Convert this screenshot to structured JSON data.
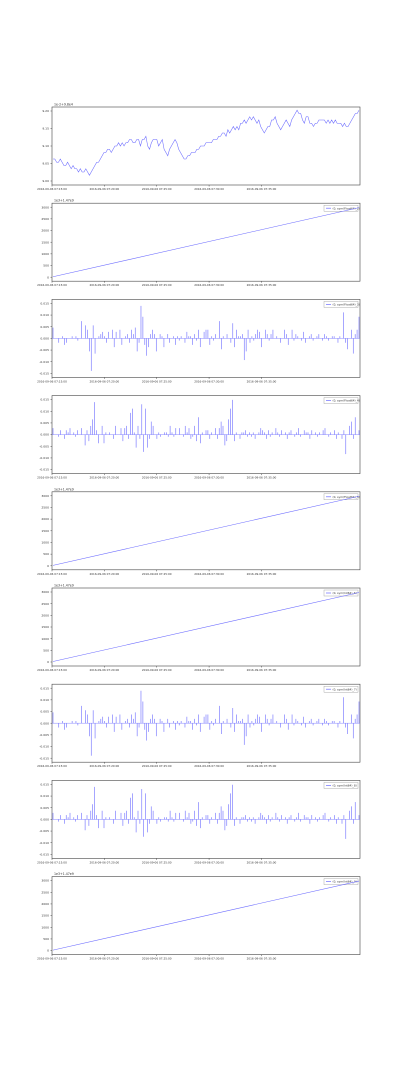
{
  "line_color": "#6b6bff",
  "frame_color": "#444444",
  "chart_data": [
    {
      "type": "line",
      "corner_label": "1e-2+9.8e4",
      "legend": "",
      "y_ticks": [
        "9.20",
        "9.15",
        "9.10",
        "9.05",
        "9.00"
      ],
      "x_ticks": [
        "2016-09-06 07:15:00",
        "2016-09-06 07:20:00",
        "2016-09-06 07:25:00",
        "2016-09-06 07:30:00",
        "2016-09-06 07:35:00"
      ],
      "ylim": [
        8.98,
        9.22
      ],
      "y": [
        9.06,
        9.06,
        9.05,
        9.05,
        9.06,
        9.05,
        9.04,
        9.04,
        9.05,
        9.04,
        9.03,
        9.04,
        9.03,
        9.03,
        9.02,
        9.03,
        9.02,
        9.02,
        9.03,
        9.02,
        9.01,
        9.02,
        9.03,
        9.04,
        9.05,
        9.05,
        9.06,
        9.07,
        9.08,
        9.08,
        9.09,
        9.09,
        9.08,
        9.09,
        9.1,
        9.1,
        9.11,
        9.1,
        9.11,
        9.1,
        9.11,
        9.11,
        9.12,
        9.12,
        9.11,
        9.11,
        9.12,
        9.12,
        9.1,
        9.12,
        9.12,
        9.13,
        9.1,
        9.09,
        9.11,
        9.12,
        9.12,
        9.12,
        9.1,
        9.11,
        9.12,
        9.09,
        9.08,
        9.07,
        9.09,
        9.1,
        9.11,
        9.12,
        9.11,
        9.09,
        9.08,
        9.07,
        9.06,
        9.06,
        9.07,
        9.07,
        9.08,
        9.08,
        9.08,
        9.09,
        9.09,
        9.1,
        9.1,
        9.1,
        9.11,
        9.11,
        9.11,
        9.11,
        9.12,
        9.12,
        9.12,
        9.13,
        9.13,
        9.14,
        9.14,
        9.13,
        9.15,
        9.14,
        9.15,
        9.16,
        9.15,
        9.16,
        9.15,
        9.17,
        9.17,
        9.18,
        9.17,
        9.18,
        9.19,
        9.18,
        9.19,
        9.18,
        9.17,
        9.18,
        9.16,
        9.15,
        9.14,
        9.15,
        9.16,
        9.16,
        9.18,
        9.18,
        9.19,
        9.17,
        9.16,
        9.15,
        9.16,
        9.17,
        9.18,
        9.17,
        9.16,
        9.18,
        9.19,
        9.2,
        9.21,
        9.2,
        9.2,
        9.18,
        9.17,
        9.19,
        9.19,
        9.17,
        9.17,
        9.16,
        9.17,
        9.17,
        9.18,
        9.18,
        9.18,
        9.18,
        9.17,
        9.18,
        9.17,
        9.18,
        9.17,
        9.18,
        9.17,
        9.17,
        9.17,
        9.16,
        9.17,
        9.16,
        9.16,
        9.17,
        9.18,
        9.19,
        9.2,
        9.2,
        9.21
      ]
    },
    {
      "type": "line",
      "corner_label": "1e3+1.47e9",
      "legend": "(0, sym(Float64)_2)",
      "y_ticks": [
        "3000",
        "2500",
        "2000",
        "1500",
        "1000",
        "500",
        "0"
      ],
      "x_ticks": [
        "2016-09-06 07:15:00",
        "2016-09-06 07:20:00",
        "2016-09-06 07:25:00",
        "2016-09-06 07:30:00",
        "2016-09-06 07:35:00"
      ],
      "ylim": [
        -200,
        3300
      ],
      "y": [
        0,
        3100
      ]
    },
    {
      "type": "bar",
      "corner_label": "",
      "legend": "(0, sym(Float64)_3)",
      "y_ticks": [
        "0.015",
        "0.010",
        "0.005",
        "0.000",
        "-0.005",
        "-0.010",
        "-0.015"
      ],
      "x_ticks": [
        "2016-09-06 07:15:00",
        "2016-09-06 07:20:00",
        "2016-09-06 07:25:00",
        "2016-09-06 07:30:00",
        "2016-09-06 07:35:00"
      ],
      "ylim": [
        -0.018,
        0.018
      ],
      "values": [
        0.005,
        0,
        0,
        -0.002,
        0,
        0.001,
        -0.003,
        -0.002,
        0,
        0,
        0.001,
        0,
        0.001,
        -0.001,
        0,
        0.008,
        0,
        0.006,
        0.004,
        -0.006,
        -0.015,
        0.006,
        -0.007,
        0,
        0.001,
        0.002,
        0.003,
        0.001,
        -0.002,
        0.003,
        0,
        0.004,
        -0.004,
        0.003,
        0,
        0.004,
        -0.003,
        0,
        0.001,
        0.002,
        -0.002,
        0.004,
        0.002,
        0.005,
        -0.006,
        -0.002,
        0.015,
        0.01,
        -0.003,
        -0.008,
        -0.004,
        0.002,
        0.004,
        0.002,
        -0.006,
        0,
        0.002,
        0.001,
        -0.004,
        0,
        0.002,
        -0.002,
        0,
        0.001,
        -0.003,
        0.001,
        -0.001,
        0.001,
        0,
        -0.002,
        0.003,
        0.001,
        0.001,
        -0.003,
        0.002,
        -0.001,
        0.004,
        -0.004,
        0,
        0.003,
        0.004,
        0.004,
        -0.003,
        0.001,
        -0.001,
        0.002,
        0,
        0.008,
        -0.005,
        0.001,
        0,
        0.002,
        0,
        -0.002,
        0.007,
        -0.004,
        0.004,
        0.001,
        0.001,
        0.002,
        -0.01,
        -0.006,
        0.004,
        -0.002,
        0.001,
        -0.001,
        0.002,
        0.004,
        0.003,
        -0.004,
        0,
        0.004,
        0.002,
        -0.001,
        0.002,
        0.004,
        0,
        0.001,
        0,
        -0.002,
        0,
        0.004,
        0.002,
        -0.003,
        0,
        0.004,
        -0.001,
        0.002,
        0.001,
        0,
        -0.001,
        0.003,
        -0.002,
        0,
        0.001,
        0.002,
        -0.001,
        0,
        0.001,
        0.002,
        0,
        -0.001,
        0.002,
        0.001,
        -0.001,
        0,
        0.001,
        0.001,
        0,
        -0.002,
        0.001,
        0,
        0.012,
        -0.002,
        -0.005,
        0,
        0.004,
        -0.007,
        0.002,
        0.004,
        0.01
      ]
    },
    {
      "type": "bar",
      "corner_label": "",
      "legend": "(0, sym(Float64)_4)",
      "y_ticks": [
        "0.015",
        "0.010",
        "0.005",
        "0.000",
        "-0.005",
        "-0.010",
        "-0.015"
      ],
      "x_ticks": [
        "2016-09-06 07:15:00",
        "2016-09-06 07:20:00",
        "2016-09-06 07:25:00",
        "2016-09-06 07:30:00",
        "2016-09-06 07:35:00"
      ],
      "ylim": [
        -0.018,
        0.018
      ],
      "values": [
        0.003,
        0,
        0,
        -0.001,
        0.002,
        0,
        -0.002,
        0.002,
        0.001,
        0.003,
        0,
        0.001,
        -0.001,
        0.002,
        0,
        0.003,
        0,
        -0.005,
        0.002,
        -0.003,
        0.004,
        0.007,
        0.015,
        0.002,
        -0.004,
        0,
        0.004,
        -0.004,
        0.001,
        0,
        0.001,
        0,
        -0.002,
        0.004,
        0,
        0,
        0.003,
        -0.003,
        0.003,
        0.004,
        -0.002,
        0.01,
        0.012,
        0.001,
        -0.006,
        0.004,
        -0.002,
        0.014,
        -0.008,
        0.012,
        -0.006,
        -0.002,
        0.006,
        0.004,
        0,
        -0.002,
        0.001,
        -0.001,
        0,
        0.001,
        0.001,
        -0.001,
        0.004,
        0.001,
        -0.001,
        0.003,
        0,
        0.003,
        0,
        -0.001,
        0.004,
        0.001,
        0.003,
        -0.002,
        -0.001,
        0.004,
        -0.003,
        0.008,
        -0.004,
        0.001,
        0,
        0.002,
        0.002,
        -0.002,
        0.001,
        0,
        0.003,
        -0.002,
        0.003,
        0.006,
        0.004,
        -0.005,
        -0.003,
        0.007,
        0.012,
        0.016,
        -0.003,
        0.001,
        0,
        -0.002,
        0.001,
        0.001,
        0.002,
        -0.001,
        0.001,
        -0.001,
        0.001,
        -0.002,
        0,
        0.001,
        0.003,
        0.002,
        0.001,
        -0.002,
        0.002,
        -0.001,
        0.001,
        0,
        0.003,
        0.001,
        -0.001,
        0.002,
        0,
        0.001,
        -0.002,
        0.001,
        0.002,
        0,
        -0.001,
        0.001,
        0.003,
        -0.001,
        0,
        0.002,
        0.001,
        0.001,
        -0.002,
        0.002,
        0,
        0.001,
        -0.001,
        0.001,
        0,
        0.002,
        0.003,
        0,
        -0.001,
        0.001,
        0,
        0.002,
        -0.002,
        0.001,
        0,
        -0.002,
        0.002,
        -0.009,
        0,
        0.004,
        0.006,
        -0.002,
        0.008,
        0,
        0.002
      ]
    },
    {
      "type": "line",
      "corner_label": "1e3+1.47e9",
      "legend": "(0, sym(Float64)_5)",
      "y_ticks": [
        "3000",
        "2500",
        "2000",
        "1500",
        "1000",
        "500",
        "0"
      ],
      "x_ticks": [
        "2016-09-06 07:15:00",
        "2016-09-06 07:20:00",
        "2016-09-06 07:25:00",
        "2016-09-06 07:30:00",
        "2016-09-06 07:35:00"
      ],
      "ylim": [
        -200,
        3300
      ],
      "y": [
        0,
        3100
      ]
    },
    {
      "type": "line",
      "corner_label": "1e3+1.47e9",
      "legend": "(0, sym(Int64)_6)",
      "y_ticks": [
        "3000",
        "2500",
        "2000",
        "1500",
        "1000",
        "500",
        "0"
      ],
      "x_ticks": [
        "2016-09-06 07:15:00",
        "2016-09-06 07:20:00",
        "2016-09-06 07:25:00",
        "2016-09-06 07:30:00",
        "2016-09-06 07:35:00"
      ],
      "ylim": [
        -200,
        3300
      ],
      "y": [
        0,
        3100
      ]
    },
    {
      "type": "bar",
      "corner_label": "",
      "legend": "(0, sym(Int64)_7)",
      "y_ticks": [
        "0.015",
        "0.010",
        "0.005",
        "0.000",
        "-0.005",
        "-0.010",
        "-0.015"
      ],
      "x_ticks": [
        "2016-09-06 07:15:00",
        "2016-09-06 07:20:00",
        "2016-09-06 07:25:00",
        "2016-09-06 07:30:00",
        "2016-09-06 07:35:00"
      ],
      "ylim": [
        -0.018,
        0.018
      ],
      "values": [
        0.005,
        0,
        0,
        -0.002,
        0,
        0.001,
        -0.003,
        -0.002,
        0,
        0,
        0.001,
        0,
        0.001,
        -0.001,
        0,
        0.008,
        0,
        0.006,
        0.004,
        -0.006,
        -0.015,
        0.006,
        -0.007,
        0,
        0.001,
        0.002,
        0.003,
        0.001,
        -0.002,
        0.003,
        0,
        0.004,
        -0.004,
        0.003,
        0,
        0.004,
        -0.003,
        0,
        0.001,
        0.002,
        -0.002,
        0.004,
        0.002,
        0.005,
        -0.006,
        -0.002,
        0.015,
        0.01,
        -0.003,
        -0.008,
        -0.004,
        0.002,
        0.004,
        0.002,
        -0.006,
        0,
        0.002,
        0.001,
        -0.004,
        0,
        0.002,
        -0.002,
        0,
        0.001,
        -0.003,
        0.001,
        -0.001,
        0.001,
        0,
        -0.002,
        0.003,
        0.001,
        0.001,
        -0.003,
        0.002,
        -0.001,
        0.004,
        -0.004,
        0,
        0.003,
        0.004,
        0.004,
        -0.003,
        0.001,
        -0.001,
        0.002,
        0,
        0.008,
        -0.005,
        0.001,
        0,
        0.002,
        0,
        -0.002,
        0.007,
        -0.004,
        0.004,
        0.001,
        0.001,
        0.002,
        -0.01,
        -0.006,
        0.004,
        -0.002,
        0.001,
        -0.001,
        0.002,
        0.004,
        0.003,
        -0.004,
        0,
        0.004,
        0.002,
        -0.001,
        0.002,
        0.004,
        0,
        0.001,
        0,
        -0.002,
        0,
        0.004,
        0.002,
        -0.003,
        0,
        0.004,
        -0.001,
        0.002,
        0.001,
        0,
        -0.001,
        0.003,
        -0.002,
        0,
        0.001,
        0.002,
        -0.001,
        0,
        0.001,
        0.002,
        0,
        -0.001,
        0.002,
        0.001,
        -0.001,
        0,
        0.001,
        0.001,
        0,
        -0.002,
        0.001,
        0,
        0.012,
        -0.002,
        -0.005,
        0,
        0.004,
        -0.007,
        0.002,
        0.004,
        0.01
      ]
    },
    {
      "type": "bar",
      "corner_label": "",
      "legend": "(0, sym(Int64)_8)",
      "y_ticks": [
        "0.015",
        "0.010",
        "0.005",
        "0.000",
        "-0.005",
        "-0.010",
        "-0.015"
      ],
      "x_ticks": [
        "2016-09-06 07:15:00",
        "2016-09-06 07:20:00",
        "2016-09-06 07:25:00",
        "2016-09-06 07:30:00",
        "2016-09-06 07:35:00"
      ],
      "ylim": [
        -0.018,
        0.018
      ],
      "values": [
        0.003,
        0,
        0,
        -0.001,
        0.002,
        0,
        -0.002,
        0.002,
        0.001,
        0.003,
        0,
        0.001,
        -0.001,
        0.002,
        0,
        0.003,
        0,
        -0.005,
        0.002,
        -0.003,
        0.004,
        0.007,
        0.015,
        0.002,
        -0.004,
        0,
        0.004,
        -0.004,
        0.001,
        0,
        0.001,
        0,
        -0.002,
        0.004,
        0,
        0,
        0.003,
        -0.003,
        0.003,
        0.004,
        -0.002,
        0.01,
        0.012,
        0.001,
        -0.006,
        0.004,
        -0.002,
        0.014,
        -0.008,
        0.012,
        -0.006,
        -0.002,
        0.006,
        0.004,
        0,
        -0.002,
        0.001,
        -0.001,
        0,
        0.001,
        0.001,
        -0.001,
        0.004,
        0.001,
        -0.001,
        0.003,
        0,
        0.003,
        0,
        -0.001,
        0.004,
        0.001,
        0.003,
        -0.002,
        -0.001,
        0.004,
        -0.003,
        0.008,
        -0.004,
        0.001,
        0,
        0.002,
        0.002,
        -0.002,
        0.001,
        0,
        0.003,
        -0.002,
        0.003,
        0.006,
        0.004,
        -0.005,
        -0.003,
        0.007,
        0.012,
        0.016,
        -0.003,
        0.001,
        0,
        -0.002,
        0.001,
        0.001,
        0.002,
        -0.001,
        0.001,
        -0.001,
        0.001,
        -0.002,
        0,
        0.001,
        0.003,
        0.002,
        0.001,
        -0.002,
        0.002,
        -0.001,
        0.001,
        0,
        0.003,
        0.001,
        -0.001,
        0.002,
        0,
        0.001,
        -0.002,
        0.001,
        0.002,
        0,
        -0.001,
        0.001,
        0.003,
        -0.001,
        0,
        0.002,
        0.001,
        0.001,
        -0.002,
        0.002,
        0,
        0.001,
        -0.001,
        0.001,
        0,
        0.002,
        0.003,
        0,
        -0.001,
        0.001,
        0,
        0.002,
        -0.002,
        0.001,
        0,
        -0.002,
        0.002,
        -0.009,
        0,
        0.004,
        0.006,
        -0.002,
        0.008,
        0,
        0.002
      ]
    },
    {
      "type": "line",
      "corner_label": "1e3+1.47e9",
      "legend": "(0, sym(Int64)_9)",
      "y_ticks": [
        "3000",
        "2500",
        "2000",
        "1500",
        "1000",
        "500",
        "0"
      ],
      "x_ticks": [
        "2016-09-06 07:15:00",
        "2016-09-06 07:20:00",
        "2016-09-06 07:25:00",
        "2016-09-06 07:30:00",
        "2016-09-06 07:35:00"
      ],
      "ylim": [
        -200,
        3300
      ],
      "y": [
        0,
        3100
      ]
    }
  ]
}
